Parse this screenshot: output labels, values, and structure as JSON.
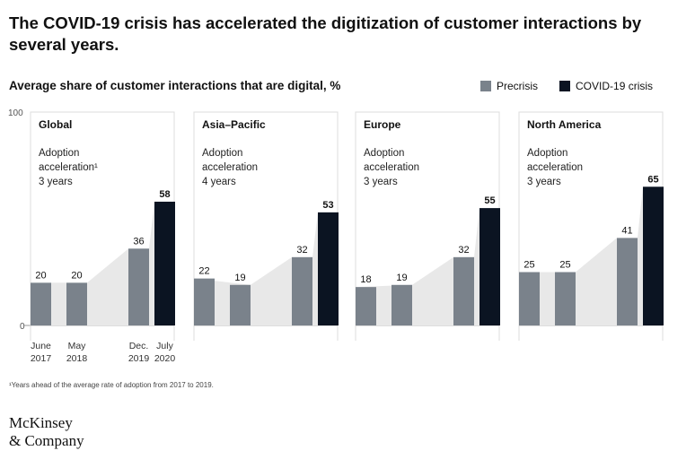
{
  "headline": "The COVID-19 crisis has accelerated the digitization of customer interactions by several years.",
  "colors": {
    "precrisis": "#7a828b",
    "covid": "#0b1422",
    "area": "#e8e8e8",
    "frame": "#dcdcdc"
  },
  "logo": {
    "line1": "McKinsey",
    "line2": "& Company"
  },
  "footnote": "¹Years ahead of the average rate of adoption from 2017 to 2019.",
  "chart_data": {
    "type": "bar",
    "title": "Average share of customer interactions that are digital, %",
    "ylim": [
      0,
      100
    ],
    "yticks": [
      "0",
      "100"
    ],
    "categories": [
      "June 2017",
      "May 2018",
      "Dec. 2019",
      "July 2020"
    ],
    "x_tick_labels": [
      [
        "June",
        "2017"
      ],
      [
        "May",
        "2018"
      ],
      [
        "Dec.",
        "2019"
      ],
      [
        "July",
        "2020"
      ]
    ],
    "legend": [
      {
        "name": "Precrisis",
        "color": "#7a828b"
      },
      {
        "name": "COVID-19 crisis",
        "color": "#0b1422"
      }
    ],
    "panels": [
      {
        "region": "Global",
        "adoption_lines": [
          "Adoption",
          "acceleration¹",
          "3 years"
        ],
        "values": [
          20,
          20,
          36,
          58
        ]
      },
      {
        "region": "Asia–Pacific",
        "adoption_lines": [
          "Adoption",
          "acceleration",
          "4 years"
        ],
        "values": [
          22,
          19,
          32,
          53
        ]
      },
      {
        "region": "Europe",
        "adoption_lines": [
          "Adoption",
          "acceleration",
          "3 years"
        ],
        "values": [
          18,
          19,
          32,
          55
        ]
      },
      {
        "region": "North America",
        "adoption_lines": [
          "Adoption",
          "acceleration",
          "3 years"
        ],
        "values": [
          25,
          25,
          41,
          65
        ]
      }
    ]
  }
}
